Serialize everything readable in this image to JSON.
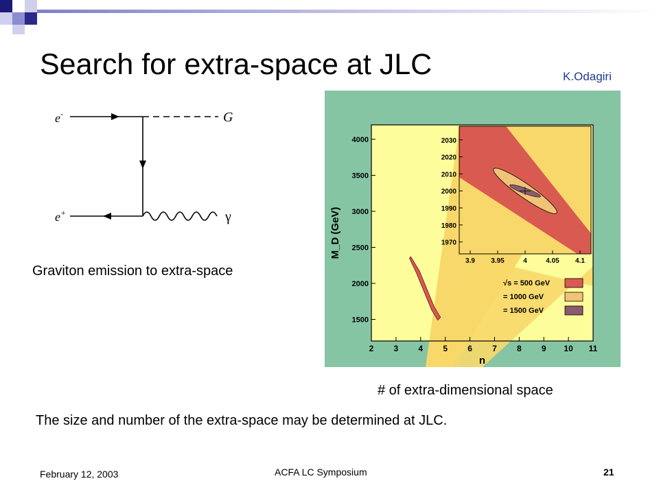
{
  "slide": {
    "title": "Search for extra-space at JLC",
    "author": "K.Odagiri",
    "footer": {
      "date": "February 12, 2003",
      "center": "ACFA LC Symposium",
      "page": "21"
    },
    "diagram": {
      "caption": "Graviton emission to extra-space",
      "labels": {
        "e_minus": "e",
        "e_minus_sup": "-",
        "e_plus": "e",
        "e_plus_sup": "+",
        "graviton": "G",
        "photon": "γ"
      }
    },
    "plot_caption": "# of extra-dimensional space",
    "summary": "The size and number of the extra-space may  be determined at JLC."
  },
  "colors": {
    "title_bar_dark": "#1a1a7a",
    "title_bar_light": "#a6a6d6",
    "plot_frame": "#86c5a4",
    "plot_background": "#fdfd9c",
    "band_500": "#d95a50",
    "band_1000": "#f0c378",
    "band_1500": "#8b5a6e",
    "zoom_fill": "#f8d86a",
    "author_color": "#1f3a93"
  },
  "chart_data": {
    "type": "scatter",
    "xlabel": "n",
    "ylabel": "M_D (GeV)",
    "xlim": [
      2,
      11
    ],
    "ylim": [
      1200,
      4200
    ],
    "x_ticks": [
      "2",
      "3",
      "4",
      "5",
      "6",
      "7",
      "8",
      "9",
      "10",
      "11"
    ],
    "y_ticks": [
      "1500",
      "2000",
      "2500",
      "3000",
      "3500",
      "4000"
    ],
    "legend": {
      "placement": "bottom-right",
      "entries": [
        {
          "label": "√s =   500 GeV",
          "color": "#d95a50"
        },
        {
          "label": "= 1000 GeV",
          "color": "#f0c378"
        },
        {
          "label": "= 1500 GeV",
          "color": "#8b5a6e"
        }
      ]
    },
    "true_point": {
      "n": 4,
      "M_D": 2000
    },
    "main_band": {
      "n": [
        3.6,
        3.9,
        4.2,
        4.5,
        4.75
      ],
      "M_D": [
        2370,
        2150,
        1900,
        1650,
        1510
      ]
    },
    "inset": {
      "xlim": [
        3.88,
        4.12
      ],
      "ylim": [
        1963,
        2038
      ],
      "x_ticks": [
        "3.9",
        "3.95",
        "4",
        "4.05",
        "4.1"
      ],
      "y_ticks": [
        "1970",
        "1980",
        "1990",
        "2000",
        "2010",
        "2020",
        "2030"
      ],
      "band_500_gev": {
        "n_min": 3.88,
        "n_max": 4.12,
        "M_D_center_at_n4": 2000
      },
      "ellipse_1000_gev": {
        "n_center": 4.0,
        "M_D_center": 2000,
        "n_range": [
          3.93,
          4.07
        ]
      },
      "ellipse_1500_gev": {
        "n_center": 4.0,
        "M_D_center": 2000,
        "n_range": [
          3.985,
          4.015
        ]
      }
    }
  }
}
